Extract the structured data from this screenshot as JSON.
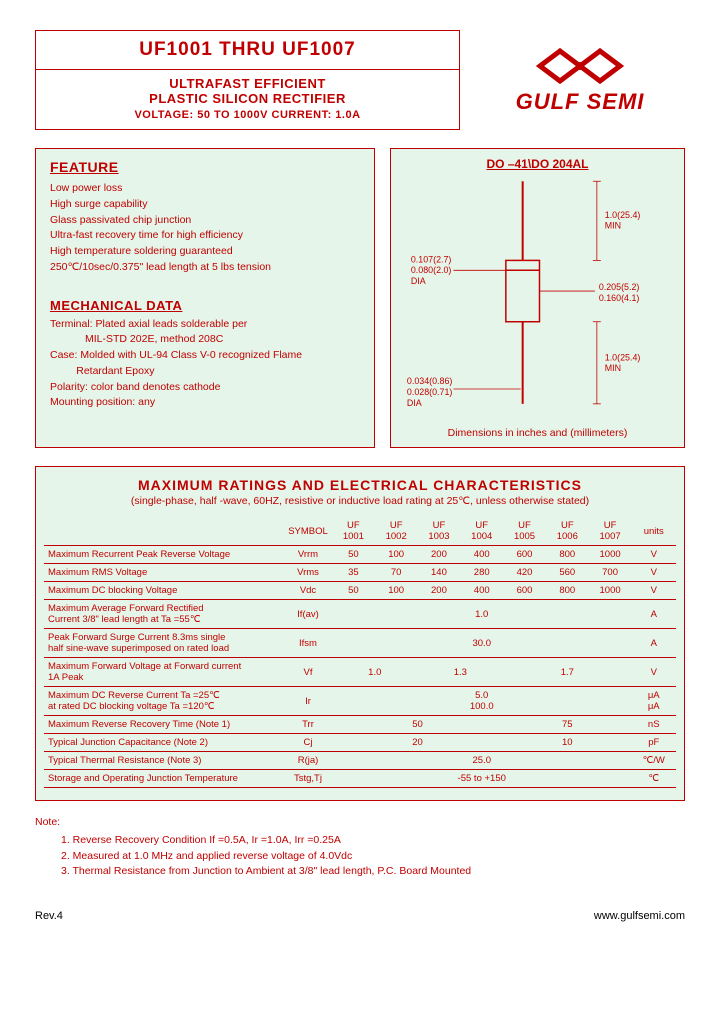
{
  "header": {
    "title": "UF1001 THRU UF1007",
    "subtitle1": "ULTRAFAST EFFICIENT",
    "subtitle2": "PLASTIC SILICON RECTIFIER",
    "spec": "VOLTAGE: 50 TO 1000V        CURRENT: 1.0A"
  },
  "logo": {
    "text": "GULF SEMI",
    "color": "#c00000"
  },
  "feature": {
    "heading": "FEATURE",
    "lines": [
      "Low power loss",
      "High surge capability",
      "Glass passivated chip junction",
      "Ultra-fast recovery time for high efficiency",
      "High temperature soldering guaranteed",
      "250℃/10sec/0.375\" lead length at 5 lbs tension"
    ],
    "mech_heading": "MECHANICAL DATA",
    "mech_lines": [
      "Terminal: Plated axial leads solderable per",
      "            MIL-STD 202E, method 208C",
      "Case: Molded with UL-94 Class V-0 recognized Flame",
      "         Retardant Epoxy",
      "Polarity: color band denotes cathode",
      "Mounting position: any"
    ]
  },
  "diagram": {
    "title": "DO –41\\DO 204AL",
    "lead_dia1": "0.107(2.7)",
    "lead_dia2": "0.080(2.0)",
    "lead_dia3": "DIA",
    "body_w1": "0.205(5.2)",
    "body_w2": "0.160(4.1)",
    "lead_len1": "1.0(25.4)",
    "lead_len2": "MIN",
    "band_d1": "0.034(0.86)",
    "band_d2": "0.028(0.71)",
    "band_d3": "DIA",
    "caption": "Dimensions in inches and (millimeters)"
  },
  "ratings": {
    "title": "MAXIMUM RATINGS AND ELECTRICAL CHARACTERISTICS",
    "subtitle": "(single-phase, half -wave, 60HZ, resistive or inductive load rating at 25℃, unless otherwise stated)",
    "columns_symbol": "SYMBOL",
    "columns": [
      "UF\n1001",
      "UF\n1002",
      "UF\n1003",
      "UF\n1004",
      "UF\n1005",
      "UF\n1006",
      "UF\n1007"
    ],
    "units": "units",
    "rows": [
      {
        "label": "Maximum Recurrent Peak Reverse Voltage",
        "sym": "Vrrm",
        "vals": [
          "50",
          "100",
          "200",
          "400",
          "600",
          "800",
          "1000"
        ],
        "unit": "V"
      },
      {
        "label": "Maximum RMS Voltage",
        "sym": "Vrms",
        "vals": [
          "35",
          "70",
          "140",
          "280",
          "420",
          "560",
          "700"
        ],
        "unit": "V"
      },
      {
        "label": "Maximum DC blocking Voltage",
        "sym": "Vdc",
        "vals": [
          "50",
          "100",
          "200",
          "400",
          "600",
          "800",
          "1000"
        ],
        "unit": "V"
      },
      {
        "label": "Maximum Average Forward Rectified\nCurrent 3/8\" lead length at Ta =55℃",
        "sym": "If(av)",
        "span": "1.0",
        "unit": "A"
      },
      {
        "label": "Peak Forward Surge Current 8.3ms single\nhalf sine-wave superimposed on rated load",
        "sym": "Ifsm",
        "span": "30.0",
        "unit": "A"
      },
      {
        "label": "Maximum Forward Voltage at Forward current\n1A Peak",
        "sym": "Vf",
        "groups": [
          {
            "n": 2,
            "v": "1.0"
          },
          {
            "n": 2,
            "v": "1.3"
          },
          {
            "n": 3,
            "v": "1.7"
          }
        ],
        "unit": "V"
      },
      {
        "label": "Maximum DC Reverse Current    Ta =25℃\nat rated DC blocking voltage    Ta =120℃",
        "sym": "Ir",
        "span2": [
          "5.0",
          "100.0"
        ],
        "unit": "μA\nμA"
      },
      {
        "label": "Maximum Reverse Recovery Time    (Note 1)",
        "sym": "Trr",
        "groups": [
          {
            "n": 4,
            "v": "50"
          },
          {
            "n": 3,
            "v": "75"
          }
        ],
        "unit": "nS"
      },
      {
        "label": "Typical Junction Capacitance         (Note 2)",
        "sym": "Cj",
        "groups": [
          {
            "n": 4,
            "v": "20"
          },
          {
            "n": 3,
            "v": "10"
          }
        ],
        "unit": "pF"
      },
      {
        "label": "Typical Thermal Resistance            (Note 3)",
        "sym": "R(ja)",
        "span": "25.0",
        "unit": "℃/W"
      },
      {
        "label": "Storage and Operating Junction Temperature",
        "sym": "Tstg,Tj",
        "span": "-55 to +150",
        "unit": "℃"
      }
    ]
  },
  "notes": {
    "heading": "Note:",
    "lines": [
      "1. Reverse Recovery Condition If =0.5A, Ir =1.0A, Irr =0.25A",
      "2. Measured at 1.0 MHz and applied reverse voltage of 4.0Vdc",
      "3. Thermal Resistance from Junction to Ambient at 3/8\" lead length, P.C. Board Mounted"
    ]
  },
  "footer": {
    "rev": "Rev.4",
    "url": "www.gulfsemi.com"
  },
  "colors": {
    "accent": "#c00000",
    "panel_bg": "#e6f5e9"
  }
}
